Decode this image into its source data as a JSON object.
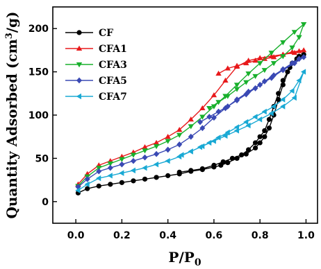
{
  "chart_data": {
    "type": "line",
    "xlabel": "P/P",
    "xlabel_sub": "0",
    "ylabel": "Quantity Adsorbed (cm",
    "ylabel_sup": "3",
    "ylabel_end": "/g)",
    "xlim": [
      -0.1,
      1.05
    ],
    "ylim": [
      -25,
      225
    ],
    "x_ticks": [
      "0.0",
      "0.2",
      "0.4",
      "0.6",
      "0.8",
      "1.0"
    ],
    "x_tick_values": [
      0.0,
      0.2,
      0.4,
      0.6,
      0.8,
      1.0
    ],
    "y_ticks": [
      "0",
      "50",
      "100",
      "150",
      "200"
    ],
    "y_tick_values": [
      0,
      50,
      100,
      150,
      200
    ],
    "grid": false,
    "legend_position": "top-left",
    "series": [
      {
        "name": "CF",
        "color": "#000000",
        "marker": "circle",
        "x": [
          0.01,
          0.05,
          0.1,
          0.15,
          0.2,
          0.25,
          0.3,
          0.35,
          0.4,
          0.45,
          0.5,
          0.55,
          0.6,
          0.63,
          0.66,
          0.7,
          0.74,
          0.78,
          0.8,
          0.82,
          0.84,
          0.86,
          0.88,
          0.9,
          0.93,
          0.96,
          0.99,
          0.97,
          0.94,
          0.92,
          0.9,
          0.88,
          0.86,
          0.84,
          0.82,
          0.8,
          0.78,
          0.75,
          0.72,
          0.68,
          0.64,
          0.6,
          0.55,
          0.5,
          0.45
        ],
        "y": [
          10,
          15,
          18,
          20,
          22,
          24,
          26,
          28,
          30,
          32,
          35,
          37,
          40,
          42,
          45,
          50,
          55,
          62,
          68,
          75,
          85,
          100,
          118,
          135,
          155,
          165,
          170,
          168,
          160,
          150,
          140,
          125,
          110,
          95,
          82,
          75,
          68,
          60,
          54,
          50,
          46,
          42,
          38,
          36,
          34
        ]
      },
      {
        "name": "CFA1",
        "color": "#e8191b",
        "marker": "triangle-up",
        "x": [
          0.01,
          0.05,
          0.1,
          0.15,
          0.2,
          0.25,
          0.3,
          0.35,
          0.4,
          0.45,
          0.5,
          0.55,
          0.6,
          0.65,
          0.7,
          0.75,
          0.8,
          0.85,
          0.9,
          0.95,
          0.99,
          0.97,
          0.94,
          0.9,
          0.86,
          0.82,
          0.78,
          0.74,
          0.7,
          0.66,
          0.62
        ],
        "y": [
          20,
          32,
          42,
          47,
          52,
          57,
          63,
          68,
          75,
          83,
          95,
          108,
          123,
          140,
          156,
          163,
          166,
          168,
          170,
          172,
          175,
          174,
          173,
          170,
          167,
          165,
          163,
          160,
          157,
          154,
          148
        ]
      },
      {
        "name": "CFA3",
        "color": "#18b02c",
        "marker": "triangle-down",
        "x": [
          0.01,
          0.05,
          0.1,
          0.15,
          0.2,
          0.25,
          0.3,
          0.35,
          0.4,
          0.45,
          0.5,
          0.55,
          0.6,
          0.65,
          0.7,
          0.75,
          0.8,
          0.85,
          0.9,
          0.95,
          0.99,
          0.97,
          0.94,
          0.9,
          0.86,
          0.82,
          0.78,
          0.74,
          0.7,
          0.66,
          0.62,
          0.58
        ],
        "y": [
          18,
          29,
          39,
          44,
          49,
          54,
          59,
          64,
          70,
          77,
          87,
          98,
          110,
          122,
          135,
          148,
          160,
          172,
          184,
          196,
          205,
          190,
          178,
          168,
          160,
          152,
          145,
          138,
          130,
          122,
          115,
          108
        ]
      },
      {
        "name": "CFA5",
        "color": "#3a49b4",
        "marker": "diamond",
        "x": [
          0.01,
          0.05,
          0.1,
          0.15,
          0.2,
          0.25,
          0.3,
          0.35,
          0.4,
          0.45,
          0.5,
          0.55,
          0.6,
          0.65,
          0.7,
          0.75,
          0.8,
          0.85,
          0.9,
          0.95,
          0.99,
          0.97,
          0.94,
          0.9,
          0.86,
          0.82,
          0.78,
          0.74,
          0.7,
          0.66,
          0.62,
          0.58,
          0.54
        ],
        "y": [
          17,
          26,
          35,
          39,
          43,
          47,
          51,
          55,
          60,
          66,
          75,
          85,
          97,
          108,
          118,
          127,
          135,
          143,
          152,
          160,
          167,
          165,
          160,
          153,
          146,
          139,
          131,
          124,
          117,
          110,
          104,
          98,
          92
        ]
      },
      {
        "name": "CFA7",
        "color": "#19a9d4",
        "marker": "triangle-left",
        "x": [
          0.01,
          0.05,
          0.1,
          0.15,
          0.2,
          0.25,
          0.3,
          0.35,
          0.4,
          0.45,
          0.5,
          0.55,
          0.6,
          0.65,
          0.7,
          0.75,
          0.8,
          0.85,
          0.9,
          0.95,
          0.99,
          0.97,
          0.94,
          0.9,
          0.86,
          0.82,
          0.78,
          0.74,
          0.7,
          0.66,
          0.62,
          0.58,
          0.54,
          0.5,
          0.46
        ],
        "y": [
          13,
          20,
          27,
          30,
          33,
          36,
          39,
          43,
          47,
          52,
          58,
          64,
          70,
          76,
          82,
          88,
          95,
          102,
          110,
          120,
          150,
          140,
          128,
          118,
          110,
          104,
          98,
          92,
          86,
          80,
          74,
          68,
          63,
          58,
          54
        ]
      }
    ]
  }
}
